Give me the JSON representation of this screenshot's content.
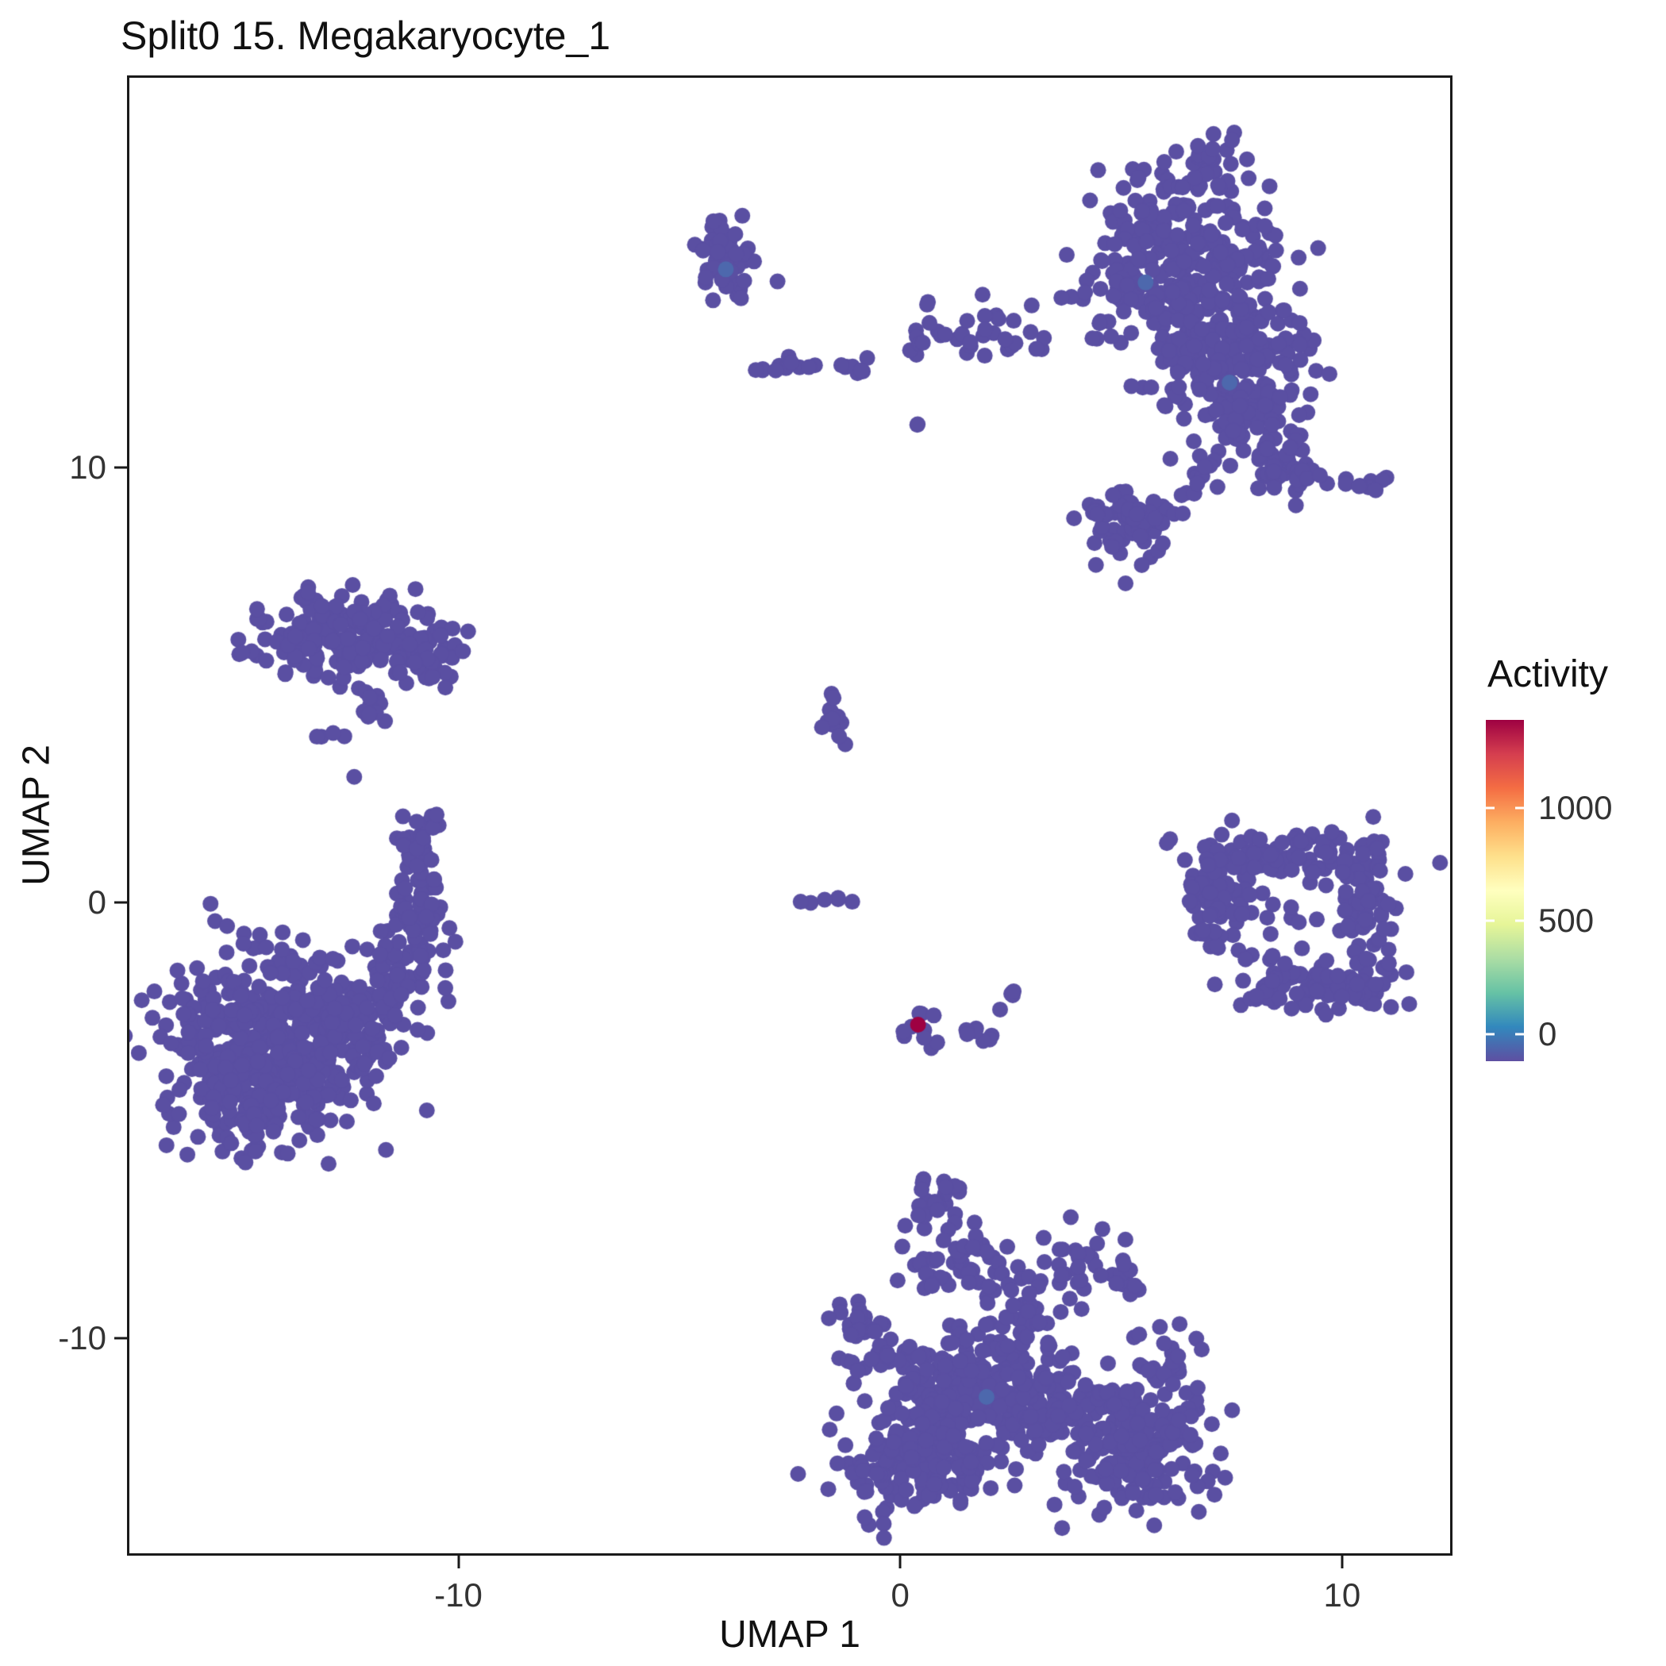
{
  "seed": 42,
  "chart_data": {
    "type": "scatter",
    "title": "Split0 15. Megakaryocyte_1",
    "xlabel": "UMAP 1",
    "ylabel": "UMAP 2",
    "xlim": [
      -17.5,
      12.5
    ],
    "ylim": [
      -15,
      19
    ],
    "xticks": [
      -10,
      0,
      10
    ],
    "yticks": [
      -10,
      0,
      10
    ],
    "grid": false,
    "legend_position": "right",
    "point_color": "#5a4fa2",
    "accent_color": "#4d68ad",
    "point_radius_px": 10,
    "colorbar": {
      "title": "Activity",
      "ticks": [
        0,
        500,
        1000
      ],
      "domain": [
        -120,
        1390
      ],
      "colors": [
        "#5e4fa2",
        "#3288bd",
        "#66c2a5",
        "#abdda4",
        "#e6f598",
        "#ffffbf",
        "#fee08b",
        "#fdae61",
        "#f46d43",
        "#d53e4f",
        "#9e0142"
      ]
    },
    "highlight_point": {
      "x": 0.35,
      "y": -2.75,
      "activity": 1390,
      "color": "#9e0142"
    },
    "accent_points": [
      {
        "x": 5.5,
        "y": 14.3
      },
      {
        "x": 7.4,
        "y": 12.0
      },
      {
        "x": -4.0,
        "y": 14.6
      },
      {
        "x": 1.9,
        "y": -11.3
      }
    ],
    "blobs": [
      {
        "cluster": "top-right",
        "x": 6.2,
        "y": 15.0,
        "sx": 1.15,
        "sy": 0.95,
        "n": 260
      },
      {
        "cluster": "top-right",
        "x": 7.2,
        "y": 12.9,
        "sx": 0.95,
        "sy": 0.85,
        "n": 170
      },
      {
        "cluster": "top-right",
        "x": 7.9,
        "y": 11.2,
        "sx": 0.65,
        "sy": 0.6,
        "n": 80
      },
      {
        "cluster": "top-right",
        "x": 8.6,
        "y": 10.1,
        "sx": 0.45,
        "sy": 0.4,
        "n": 35
      },
      {
        "cluster": "top-right",
        "x": 6.8,
        "y": 17.2,
        "sx": 0.3,
        "sy": 0.4,
        "n": 16
      },
      {
        "cluster": "top-right",
        "x": 3.6,
        "y": 13.1,
        "sx": 0.5,
        "sy": 0.18,
        "n": 8
      },
      {
        "cluster": "top-right",
        "x": 5.1,
        "y": 8.8,
        "sx": 0.55,
        "sy": 0.45,
        "n": 65
      },
      {
        "cluster": "top-right",
        "x": 6.6,
        "y": 9.6,
        "sx": 0.3,
        "sy": 0.3,
        "n": 14
      },
      {
        "cluster": "top-right",
        "x": 10.4,
        "y": 9.7,
        "sx": 0.45,
        "sy": 0.12,
        "n": 9
      },
      {
        "cluster": "top-right",
        "x": 9.3,
        "y": 9.9,
        "sx": 0.2,
        "sy": 0.12,
        "n": 5
      },
      {
        "cluster": "top-middle",
        "x": -3.95,
        "y": 14.8,
        "sx": 0.33,
        "sy": 0.55,
        "n": 60
      },
      {
        "cluster": "top-middle",
        "x": -2.8,
        "y": 12.4,
        "sx": 0.5,
        "sy": 0.1,
        "n": 13
      },
      {
        "cluster": "top-middle",
        "x": -1.15,
        "y": 12.35,
        "sx": 0.3,
        "sy": 0.1,
        "n": 8
      },
      {
        "cluster": "top-middle",
        "x": 0.75,
        "y": 13.1,
        "sx": 0.3,
        "sy": 0.4,
        "n": 15
      },
      {
        "cluster": "top-middle",
        "x": 2.0,
        "y": 13.0,
        "sx": 0.35,
        "sy": 0.5,
        "n": 17
      },
      {
        "cluster": "top-middle",
        "x": 0.3,
        "y": 11.0,
        "sx": 0.06,
        "sy": 0.06,
        "n": 2
      },
      {
        "cluster": "mid-left",
        "x": -12.4,
        "y": 6.2,
        "sx": 1.1,
        "sy": 0.5,
        "n": 190
      },
      {
        "cluster": "mid-left",
        "x": -11.0,
        "y": 5.6,
        "sx": 0.4,
        "sy": 0.3,
        "n": 25
      },
      {
        "cluster": "mid-left",
        "x": -11.9,
        "y": 4.4,
        "sx": 0.3,
        "sy": 0.3,
        "n": 10
      },
      {
        "cluster": "mid-left",
        "x": -12.9,
        "y": 3.9,
        "sx": 0.12,
        "sy": 0.12,
        "n": 4
      },
      {
        "cluster": "mid-left",
        "x": -12.4,
        "y": 2.9,
        "sx": 0.04,
        "sy": 0.04,
        "n": 1
      },
      {
        "cluster": "left-lower",
        "x": -14.3,
        "y": -3.1,
        "sx": 1.2,
        "sy": 1.1,
        "n": 420
      },
      {
        "cluster": "left-lower",
        "x": -14.6,
        "y": -4.4,
        "sx": 0.75,
        "sy": 0.55,
        "n": 110
      },
      {
        "cluster": "left-lower",
        "x": -12.3,
        "y": -2.6,
        "sx": 0.6,
        "sy": 0.6,
        "n": 70
      },
      {
        "cluster": "left-lower",
        "x": -11.3,
        "y": -1.1,
        "sx": 0.45,
        "sy": 0.6,
        "n": 55
      },
      {
        "cluster": "left-lower",
        "x": -10.9,
        "y": 0.4,
        "sx": 0.3,
        "sy": 0.55,
        "n": 35
      },
      {
        "cluster": "left-lower",
        "x": -10.8,
        "y": 1.6,
        "sx": 0.28,
        "sy": 0.3,
        "n": 18
      },
      {
        "cluster": "center",
        "x": -1.55,
        "y": 4.35,
        "sx": 0.22,
        "sy": 0.3,
        "n": 13
      },
      {
        "cluster": "center",
        "x": -1.35,
        "y": 0.1,
        "sx": 0.45,
        "sy": 0.07,
        "n": 6
      },
      {
        "cluster": "center",
        "x": 0.35,
        "y": -2.75,
        "sx": 0.25,
        "sy": 0.18,
        "n": 11
      },
      {
        "cluster": "center",
        "x": 1.6,
        "y": -2.95,
        "sx": 0.2,
        "sy": 0.1,
        "n": 7
      },
      {
        "cluster": "center",
        "x": 2.4,
        "y": -2.1,
        "sx": 0.13,
        "sy": 0.2,
        "n": 5
      },
      {
        "cluster": "right-ring",
        "x": 8.9,
        "y": 1.1,
        "sx": 1.15,
        "sy": 0.28,
        "n": 85
      },
      {
        "cluster": "right-ring",
        "x": 7.15,
        "y": 0.5,
        "sx": 0.4,
        "sy": 0.5,
        "n": 45
      },
      {
        "cluster": "right-ring",
        "x": 10.55,
        "y": -0.4,
        "sx": 0.3,
        "sy": 0.85,
        "n": 65
      },
      {
        "cluster": "right-ring",
        "x": 9.5,
        "y": -1.95,
        "sx": 0.8,
        "sy": 0.25,
        "n": 65
      },
      {
        "cluster": "right-ring",
        "x": 8.25,
        "y": -1.55,
        "sx": 0.3,
        "sy": 0.3,
        "n": 22
      },
      {
        "cluster": "right-ring",
        "x": 7.0,
        "y": -0.5,
        "sx": 0.25,
        "sy": 0.4,
        "n": 20
      },
      {
        "cluster": "right-ring",
        "x": 8.9,
        "y": -0.4,
        "sx": 0.8,
        "sy": 0.5,
        "n": 12
      },
      {
        "cluster": "right-ring",
        "x": 6.65,
        "y": -0.2,
        "sx": 0.12,
        "sy": 0.5,
        "n": 5
      },
      {
        "cluster": "bottom",
        "x": 0.7,
        "y": -6.8,
        "sx": 0.32,
        "sy": 0.32,
        "n": 22
      },
      {
        "cluster": "bottom",
        "x": 1.2,
        "y": -8.3,
        "sx": 0.75,
        "sy": 0.5,
        "n": 55
      },
      {
        "cluster": "bottom",
        "x": -1.1,
        "y": -9.6,
        "sx": 0.3,
        "sy": 0.28,
        "n": 16
      },
      {
        "cluster": "bottom",
        "x": -0.35,
        "y": -10.4,
        "sx": 0.5,
        "sy": 0.4,
        "n": 32
      },
      {
        "cluster": "bottom",
        "x": 3.8,
        "y": -8.2,
        "sx": 0.5,
        "sy": 0.4,
        "n": 28
      },
      {
        "cluster": "bottom",
        "x": 4.9,
        "y": -8.7,
        "sx": 0.3,
        "sy": 0.22,
        "n": 10
      },
      {
        "cluster": "bottom",
        "x": 1.8,
        "y": -11.0,
        "sx": 1.05,
        "sy": 0.75,
        "n": 240
      },
      {
        "cluster": "bottom",
        "x": 0.3,
        "y": -12.8,
        "sx": 0.85,
        "sy": 0.65,
        "n": 170
      },
      {
        "cluster": "bottom",
        "x": 5.3,
        "y": -12.3,
        "sx": 0.9,
        "sy": 0.75,
        "n": 210
      },
      {
        "cluster": "bottom",
        "x": 3.4,
        "y": -11.6,
        "sx": 0.6,
        "sy": 0.5,
        "n": 55
      },
      {
        "cluster": "bottom",
        "x": 5.9,
        "y": -10.4,
        "sx": 0.4,
        "sy": 0.3,
        "n": 22
      },
      {
        "cluster": "bottom",
        "x": 2.6,
        "y": -9.6,
        "sx": 0.4,
        "sy": 0.3,
        "n": 18
      }
    ]
  }
}
